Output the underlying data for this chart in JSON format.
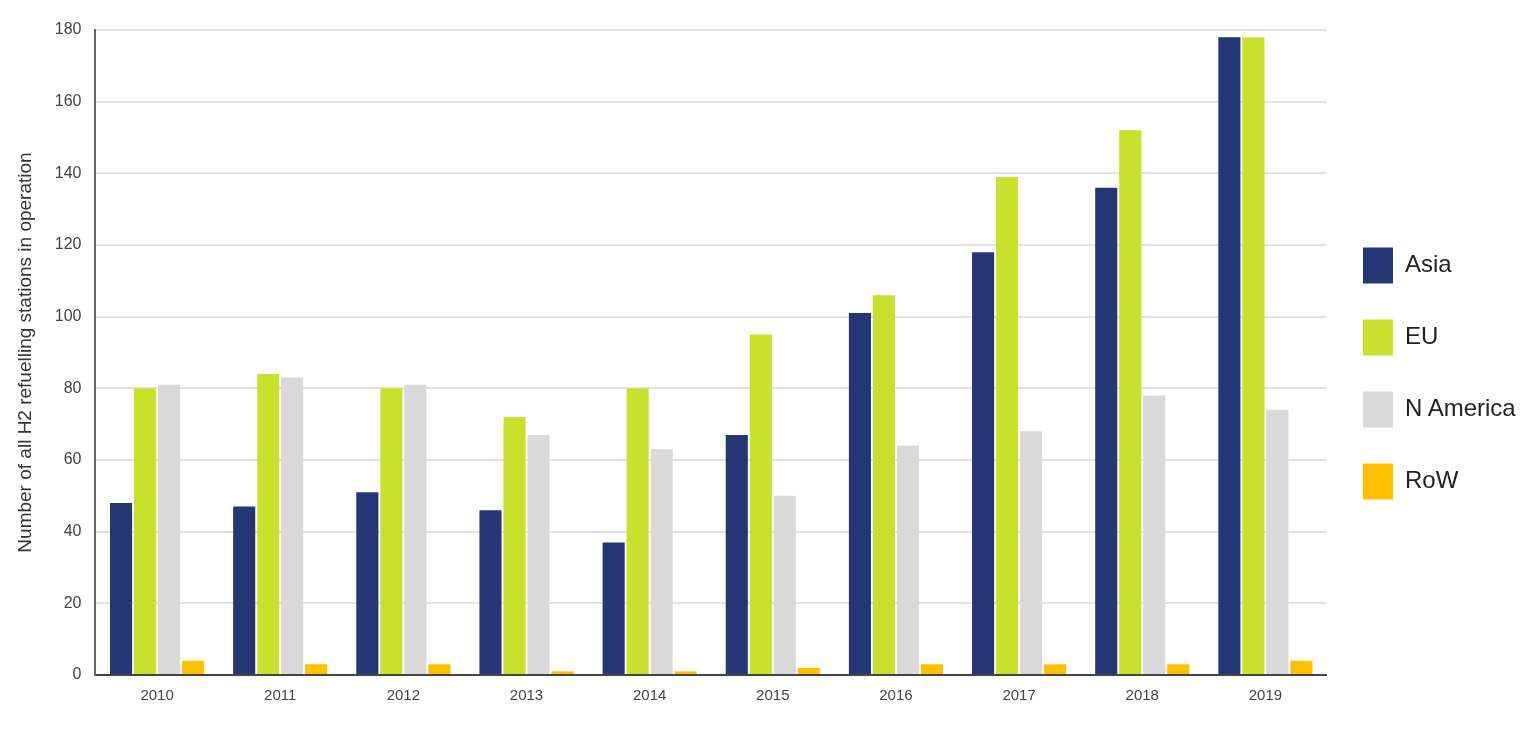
{
  "chart_data": {
    "type": "bar",
    "ylabel": "Number of all H2 refuelling stations in operation",
    "categories": [
      "2010",
      "2011",
      "2012",
      "2013",
      "2014",
      "2015",
      "2016",
      "2017",
      "2018",
      "2019"
    ],
    "series": [
      {
        "name": "Asia",
        "color": "#253676",
        "values": [
          48,
          47,
          51,
          46,
          37,
          67,
          101,
          118,
          136,
          178
        ]
      },
      {
        "name": "EU",
        "color": "#c8e12c",
        "values": [
          80,
          84,
          80,
          72,
          80,
          95,
          106,
          139,
          152,
          178
        ]
      },
      {
        "name": "N America",
        "color": "#d9d9d9",
        "values": [
          81,
          83,
          81,
          67,
          63,
          50,
          64,
          68,
          78,
          74
        ]
      },
      {
        "name": "RoW",
        "color": "#ffc000",
        "values": [
          4,
          3,
          3,
          1,
          1,
          2,
          3,
          3,
          3,
          4
        ]
      }
    ],
    "ylim": [
      0,
      180
    ],
    "yticks": [
      0,
      20,
      40,
      60,
      80,
      100,
      120,
      140,
      160,
      180
    ],
    "grid": "y",
    "legend": "right"
  }
}
